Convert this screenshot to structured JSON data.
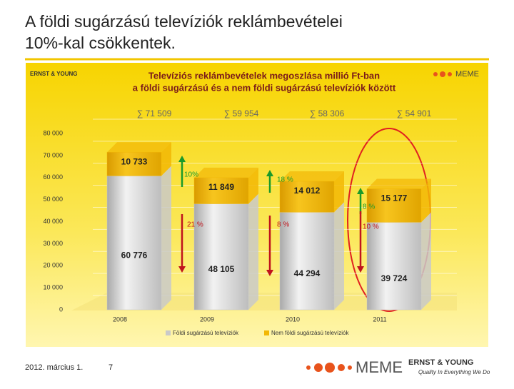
{
  "slide_title": [
    "A földi sugárzású televíziók reklámbevételei",
    "10%-kal csökkentek."
  ],
  "footer": {
    "date": "2012. március 1.",
    "page": "7"
  },
  "logos": {
    "meme": "MEME",
    "ey": "ERNST & YOUNG",
    "ey_tagline": "Quality In Everything We Do"
  },
  "chart_data": {
    "type": "stacked-bar",
    "title": [
      "Televíziós reklámbevételek megoszlása millió Ft-ban",
      "a földi sugárzású és a nem földi sugárzású televíziók között"
    ],
    "categories": [
      "2008",
      "2009",
      "2010",
      "2011"
    ],
    "series": [
      {
        "name": "Földi sugárzású televíziók",
        "color": "#c9c9c9",
        "values": [
          60776,
          48105,
          44294,
          39724
        ],
        "value_labels": [
          "60 776",
          "48 105",
          "44 294",
          "39 724"
        ]
      },
      {
        "name": "Nem földi sugárzású televíziók",
        "color": "#f2b705",
        "values": [
          10733,
          11849,
          14012,
          15177
        ],
        "value_labels": [
          "10 733",
          "11 849",
          "14 012",
          "15 177"
        ]
      }
    ],
    "totals": [
      "∑ 71 509",
      "∑ 59 954",
      "∑ 58 306",
      "∑ 54 901"
    ],
    "increase_labels": [
      "10%",
      "18 %",
      "8 %"
    ],
    "decrease_labels": [
      "21 %",
      "8 %",
      "10 %"
    ],
    "ylim": [
      0,
      80000
    ],
    "yticks": [
      0,
      {
        "value": 10000,
        "label": "10 000"
      },
      {
        "value": 20000,
        "label": "20 000"
      },
      {
        "value": 30000,
        "label": "30 000"
      },
      {
        "value": 40000,
        "label": "40 000"
      },
      {
        "value": 50000,
        "label": "50 000"
      },
      {
        "value": 60000,
        "label": "60 000"
      },
      {
        "value": 70000,
        "label": "70 000"
      },
      {
        "value": 80000,
        "label": "80 000"
      }
    ],
    "grid": true
  }
}
